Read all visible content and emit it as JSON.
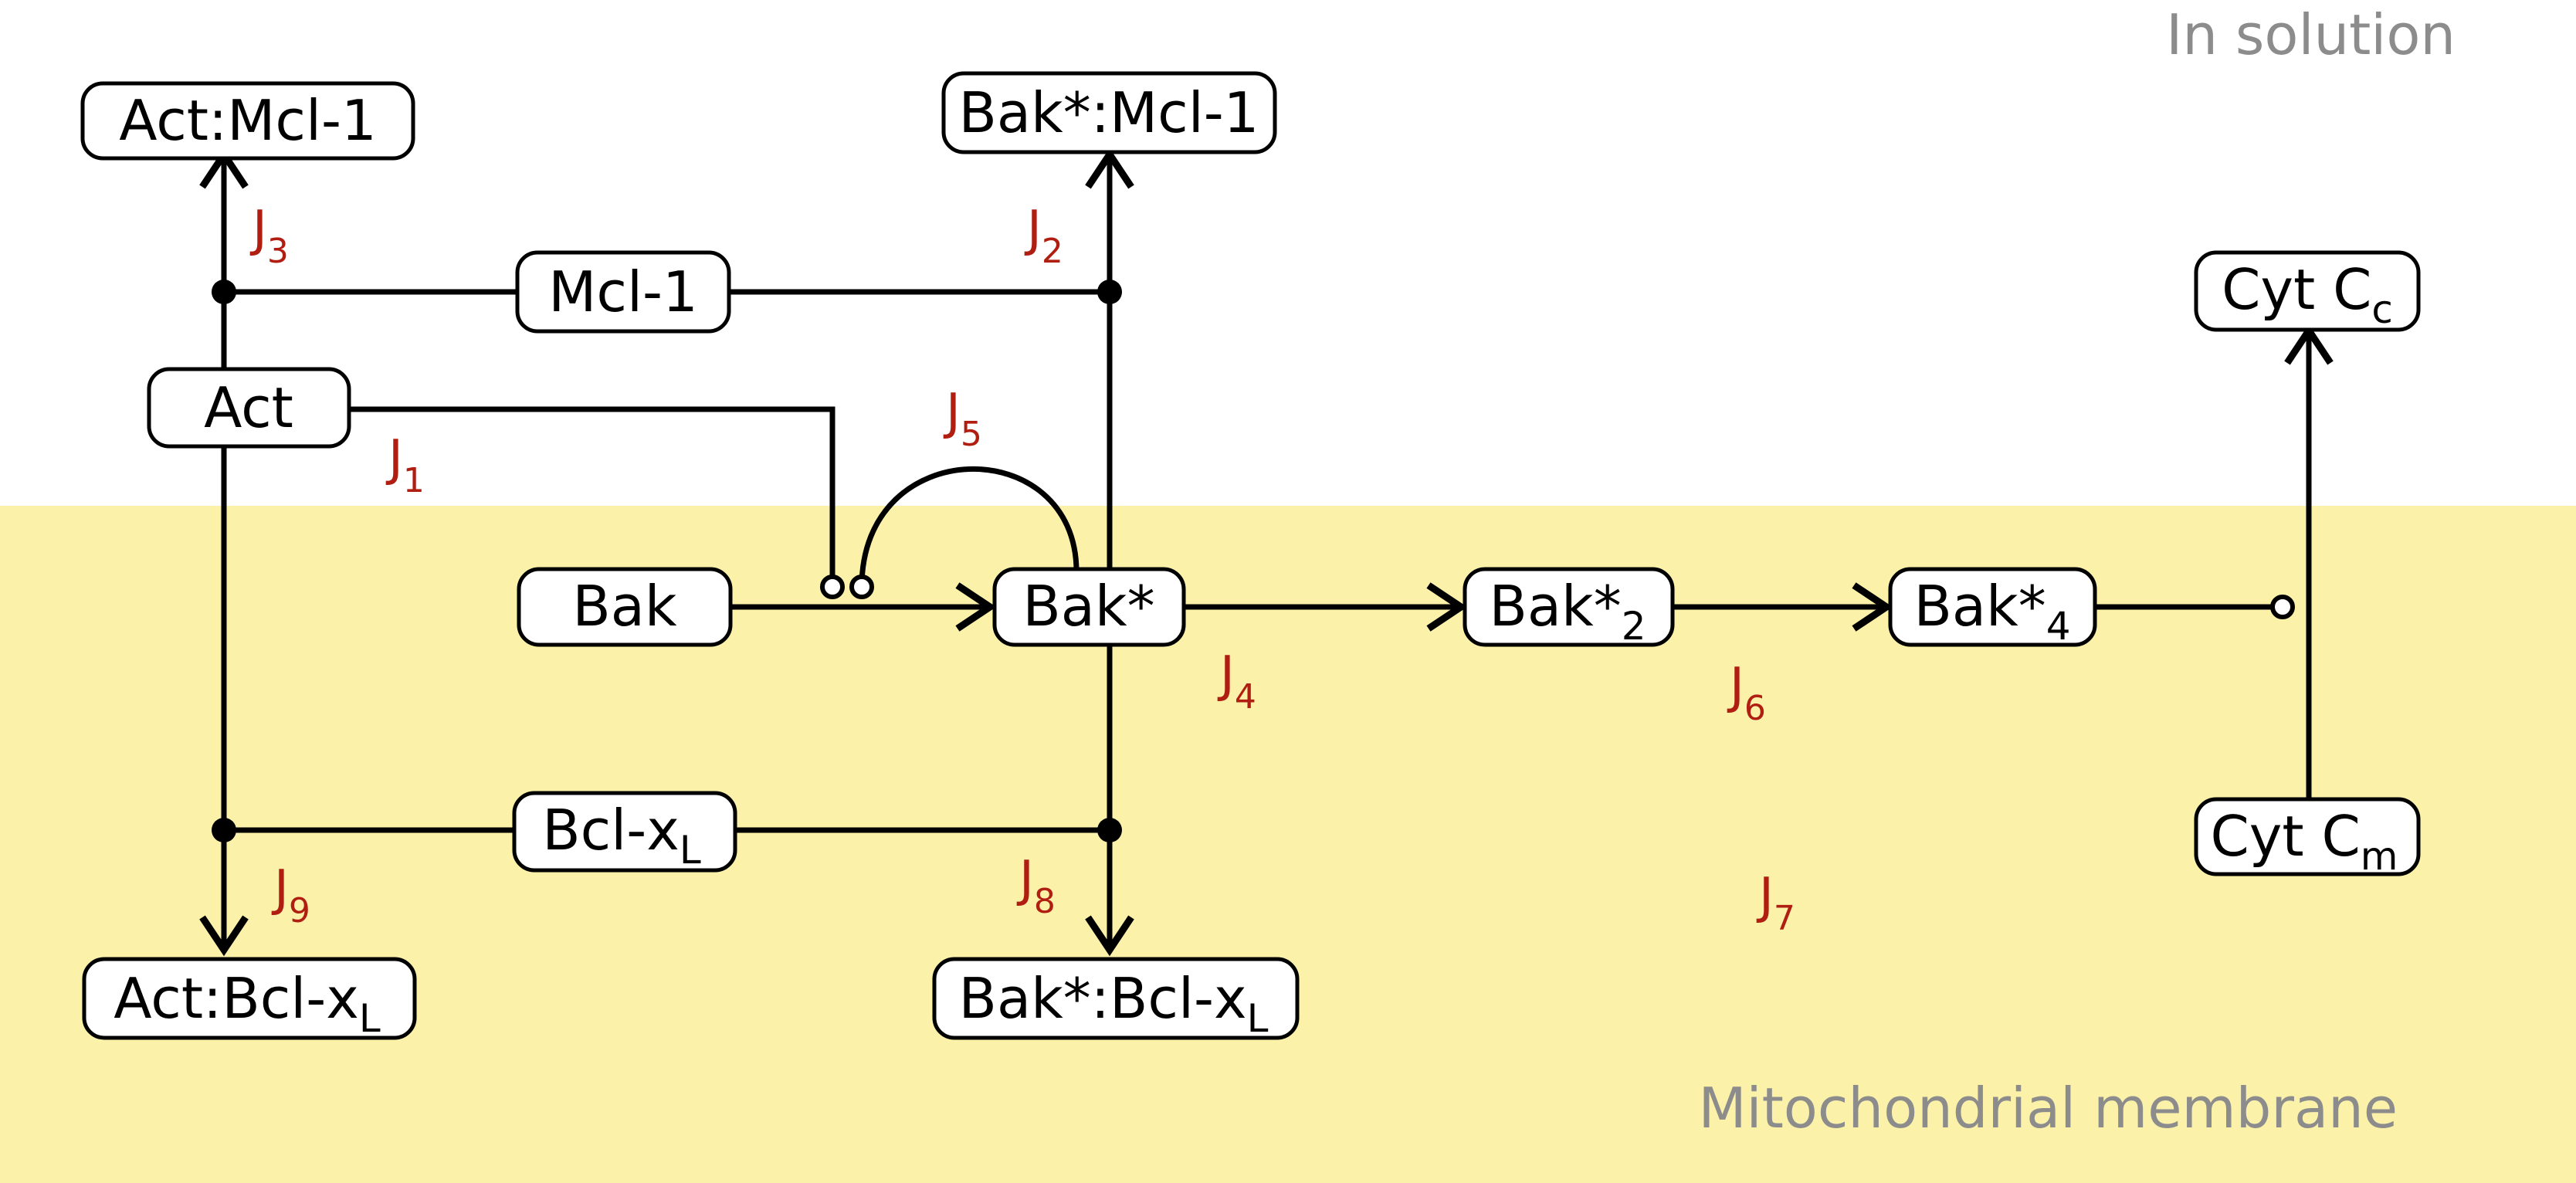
{
  "regions": {
    "solution": "In solution",
    "membrane": "Mitochondrial membrane"
  },
  "colors": {
    "membrane_fill": "#fbf1a9",
    "solution_fill": "#ffffff",
    "flux_label": "#b01e12",
    "region_label": "#8c8c8c"
  },
  "nodes": {
    "act_mcl1": {
      "text": "Act:Mcl-1"
    },
    "bak_mcl1": {
      "text": "Bak*:Mcl-1"
    },
    "mcl1": {
      "text": "Mcl-1"
    },
    "act": {
      "text": "Act"
    },
    "cytc_c": {
      "text": "Cyt C",
      "sub": "c"
    },
    "bak": {
      "text": "Bak"
    },
    "bak_star": {
      "text": "Bak*"
    },
    "bak2": {
      "text": "Bak*",
      "sub": "2"
    },
    "bak4": {
      "text": "Bak*",
      "sub": "4"
    },
    "bclxl": {
      "text": "Bcl-x",
      "sub": "L"
    },
    "cytc_m": {
      "text": "Cyt C",
      "sub": "m"
    },
    "act_bclxl": {
      "text": "Act:Bcl-x",
      "sub": "L"
    },
    "bak_bclxl": {
      "text": "Bak*:Bcl-x",
      "sub": "L"
    }
  },
  "fluxes": {
    "j1": {
      "text": "J",
      "sub": "1"
    },
    "j2": {
      "text": "J",
      "sub": "2"
    },
    "j3": {
      "text": "J",
      "sub": "3"
    },
    "j4": {
      "text": "J",
      "sub": "4"
    },
    "j5": {
      "text": "J",
      "sub": "5"
    },
    "j6": {
      "text": "J",
      "sub": "6"
    },
    "j7": {
      "text": "J",
      "sub": "7"
    },
    "j8": {
      "text": "J",
      "sub": "8"
    },
    "j9": {
      "text": "J",
      "sub": "9"
    }
  }
}
